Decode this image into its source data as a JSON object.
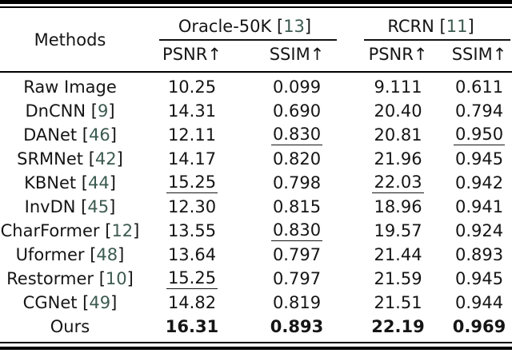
{
  "ui": {
    "lbracket": "[",
    "rbracket": "]"
  },
  "colors": {
    "text": "#151515",
    "cite": "#3c5a50",
    "rule": "#000000",
    "background": "#ffffff"
  },
  "header": {
    "methods_label": "Methods",
    "groups": [
      {
        "name": "Oracle-50K",
        "cite": "13",
        "metrics": [
          "PSNR↑",
          "SSIM↑"
        ]
      },
      {
        "name": "RCRN",
        "cite": "11",
        "metrics": [
          "PSNR↑",
          "SSIM↑"
        ]
      }
    ]
  },
  "table": {
    "columns": [
      "Methods",
      "Oracle-50K PSNR↑",
      "Oracle-50K SSIM↑",
      "RCRN PSNR↑",
      "RCRN SSIM↑"
    ],
    "legend": {
      "u": "underline (second best)",
      "b": "bold (best)"
    },
    "rows": [
      {
        "method": "Raw Image",
        "cite": null,
        "vals": [
          [
            "10.25",
            ""
          ],
          [
            "0.099",
            ""
          ],
          [
            "9.111",
            ""
          ],
          [
            "0.611",
            ""
          ]
        ]
      },
      {
        "method": "DnCNN",
        "cite": "9",
        "vals": [
          [
            "14.31",
            ""
          ],
          [
            "0.690",
            ""
          ],
          [
            "20.40",
            ""
          ],
          [
            "0.794",
            ""
          ]
        ]
      },
      {
        "method": "DANet",
        "cite": "46",
        "vals": [
          [
            "12.11",
            ""
          ],
          [
            "0.830",
            "u"
          ],
          [
            "20.81",
            ""
          ],
          [
            "0.950",
            "u"
          ]
        ]
      },
      {
        "method": "SRMNet",
        "cite": "42",
        "vals": [
          [
            "14.17",
            ""
          ],
          [
            "0.820",
            ""
          ],
          [
            "21.96",
            ""
          ],
          [
            "0.945",
            ""
          ]
        ]
      },
      {
        "method": "KBNet",
        "cite": "44",
        "vals": [
          [
            "15.25",
            "u"
          ],
          [
            "0.798",
            ""
          ],
          [
            "22.03",
            "u"
          ],
          [
            "0.942",
            ""
          ]
        ]
      },
      {
        "method": "InvDN",
        "cite": "45",
        "vals": [
          [
            "12.30",
            ""
          ],
          [
            "0.815",
            ""
          ],
          [
            "18.96",
            ""
          ],
          [
            "0.941",
            ""
          ]
        ]
      },
      {
        "method": "CharFormer",
        "cite": "12",
        "vals": [
          [
            "13.55",
            ""
          ],
          [
            "0.830",
            "u"
          ],
          [
            "19.57",
            ""
          ],
          [
            "0.924",
            ""
          ]
        ]
      },
      {
        "method": "Uformer",
        "cite": "48",
        "vals": [
          [
            "13.64",
            ""
          ],
          [
            "0.797",
            ""
          ],
          [
            "21.44",
            ""
          ],
          [
            "0.893",
            ""
          ]
        ]
      },
      {
        "method": "Restormer",
        "cite": "10",
        "vals": [
          [
            "15.25",
            "u"
          ],
          [
            "0.797",
            ""
          ],
          [
            "21.59",
            ""
          ],
          [
            "0.945",
            ""
          ]
        ]
      },
      {
        "method": "CGNet",
        "cite": "49",
        "vals": [
          [
            "14.82",
            ""
          ],
          [
            "0.819",
            ""
          ],
          [
            "21.51",
            ""
          ],
          [
            "0.944",
            ""
          ]
        ]
      },
      {
        "method": "Ours",
        "cite": null,
        "vals": [
          [
            "16.31",
            "b"
          ],
          [
            "0.893",
            "b"
          ],
          [
            "22.19",
            "b"
          ],
          [
            "0.969",
            "b"
          ]
        ]
      }
    ]
  }
}
